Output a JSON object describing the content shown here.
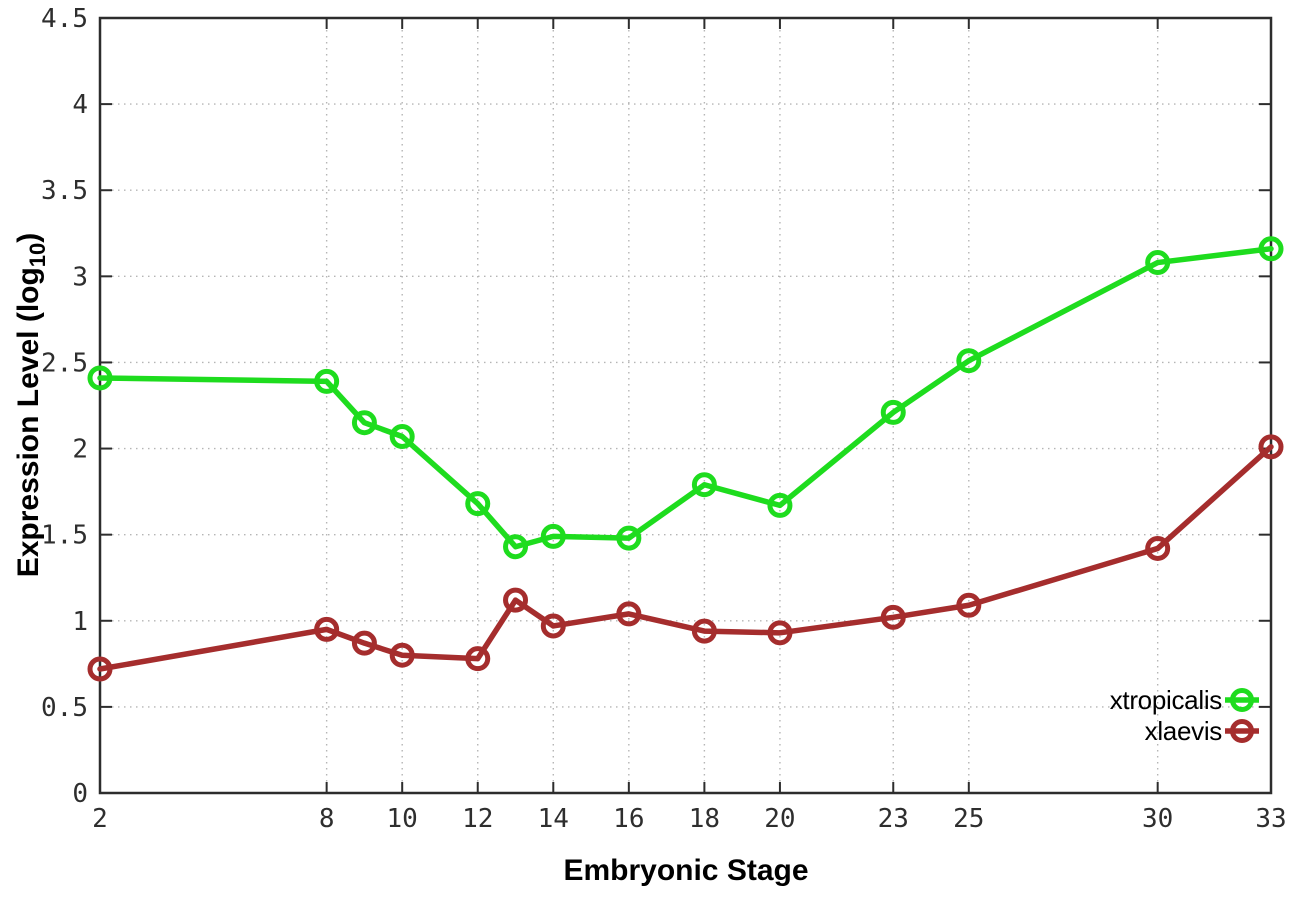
{
  "page": {
    "background": "#ffffff"
  },
  "chart_data": {
    "type": "line",
    "title": "",
    "xlabel": "Embryonic Stage",
    "ylabel": "Expression Level (log10)",
    "ylabel_parts": {
      "pre": "Expression Level (log",
      "sub": "10",
      "post": ")"
    },
    "x": [
      2,
      8,
      9,
      10,
      12,
      13,
      14,
      16,
      18,
      20,
      23,
      25,
      30,
      33
    ],
    "series": [
      {
        "name": "xtropicalis",
        "color": "#1edc1e",
        "values": [
          2.41,
          2.39,
          2.15,
          2.07,
          1.68,
          1.43,
          1.49,
          1.48,
          1.79,
          1.67,
          2.21,
          2.51,
          3.08,
          3.16
        ]
      },
      {
        "name": "xlaevis",
        "color": "#a52d2d",
        "values": [
          0.72,
          0.95,
          0.87,
          0.8,
          0.78,
          1.12,
          0.97,
          1.04,
          0.94,
          0.93,
          1.02,
          1.09,
          1.42,
          2.01
        ]
      }
    ],
    "xticks": [
      2,
      8,
      10,
      12,
      14,
      16,
      18,
      20,
      23,
      25,
      30,
      33
    ],
    "yticks": [
      0,
      0.5,
      1,
      1.5,
      2,
      2.5,
      3,
      3.5,
      4,
      4.5
    ],
    "xlim": [
      2,
      33
    ],
    "ylim": [
      0,
      4.5
    ],
    "grid": true,
    "legend_position": "inside-bottom-right",
    "marker": "open-circle"
  },
  "style": {
    "axis_color": "#2d2d2d",
    "grid_color": "#b5b5b5",
    "tick_label_color": "#2e2e2e",
    "text_color": "#000000"
  }
}
